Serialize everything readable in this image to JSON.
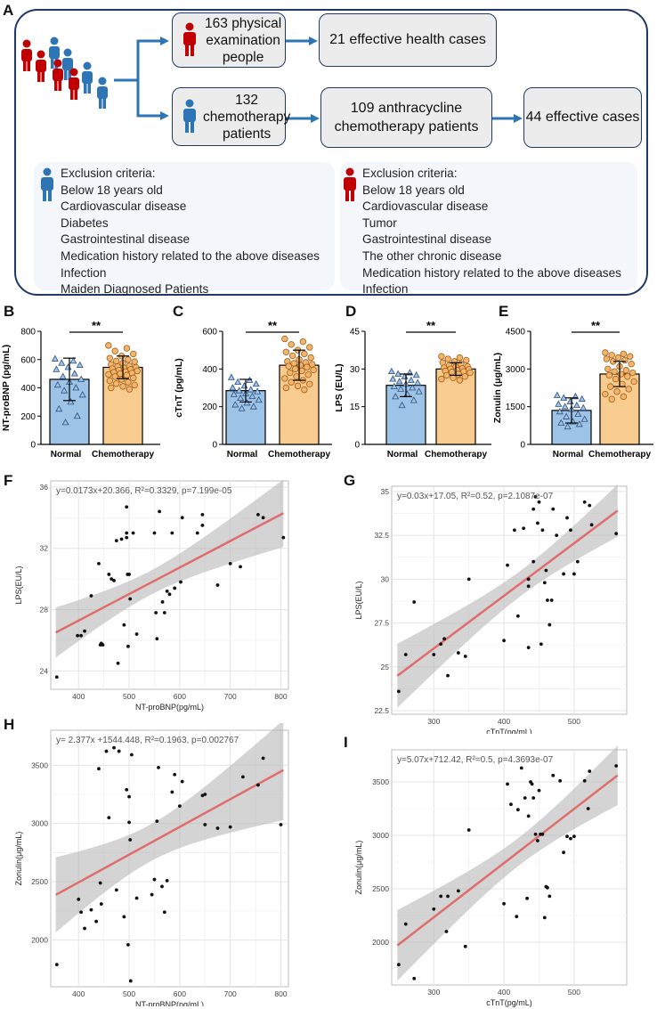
{
  "panel_letters": {
    "A": "A",
    "B": "B",
    "C": "C",
    "D": "D",
    "E": "E",
    "F": "F",
    "G": "G",
    "H": "H",
    "I": "I"
  },
  "flowchart": {
    "box1": {
      "count": "163",
      "label_rest": "physical",
      "line2": "examination",
      "line3": "people"
    },
    "box2": "21 effective health cases",
    "box3": {
      "count": "132",
      "line2": "chemotherapy",
      "line3": "patients"
    },
    "box4": {
      "line1": "109 anthracycline",
      "line2": "chemotherapy patients"
    },
    "box5": "44 effective cases",
    "colors": {
      "frame": "#1f3864",
      "arrow": "#2e75b6",
      "red_person": "#c00000",
      "blue_person": "#2e75b6"
    }
  },
  "exclusion_left": {
    "title": "Exclusion criteria:",
    "items": [
      "Below 18 years old",
      "Cardiovascular disease",
      "Diabetes",
      "Gastrointestinal disease",
      "Medication history related to the above diseases",
      "Infection",
      "Maiden Diagnosed Patients"
    ]
  },
  "exclusion_right": {
    "title": "Exclusion criteria:",
    "items": [
      "Below 18 years old",
      "Cardiovascular disease",
      "Tumor",
      "Gastrointestinal disease",
      "The other chronic disease",
      "Medication history related to the above diseases",
      "Infection"
    ]
  },
  "chart_data": [
    {
      "id": "B",
      "type": "bar",
      "ylabel": "NT-proBNP (pg/mL)",
      "categories": [
        "Normal",
        "Chemotherapy"
      ],
      "values": [
        460,
        545
      ],
      "sd": [
        150,
        80
      ],
      "ylim": [
        0,
        800
      ],
      "yticks": [
        "0",
        "200",
        "400",
        "600",
        "800"
      ],
      "significance": "**",
      "normal_points": [
        605,
        590,
        575,
        560,
        545,
        530,
        500,
        480,
        460,
        440,
        420,
        400,
        380,
        350,
        300,
        250,
        200,
        155
      ],
      "chemo_points": [
        700,
        680,
        660,
        640,
        625,
        610,
        600,
        590,
        585,
        575,
        565,
        555,
        550,
        545,
        540,
        535,
        530,
        525,
        520,
        515,
        510,
        505,
        500,
        495,
        490,
        480,
        470,
        460,
        450,
        440,
        430,
        420,
        410,
        400,
        390
      ]
    },
    {
      "id": "C",
      "type": "bar",
      "ylabel": "cTnT (pg/mL)",
      "categories": [
        "Normal",
        "Chemotherapy"
      ],
      "values": [
        285,
        420
      ],
      "sd": [
        60,
        80
      ],
      "ylim": [
        0,
        600
      ],
      "yticks": [
        "0",
        "200",
        "400",
        "600"
      ],
      "significance": "**",
      "normal_points": [
        355,
        340,
        330,
        320,
        310,
        300,
        290,
        285,
        280,
        270,
        265,
        255,
        245,
        235,
        220,
        210,
        200,
        190
      ],
      "chemo_points": [
        560,
        545,
        530,
        515,
        500,
        490,
        480,
        470,
        460,
        450,
        440,
        435,
        430,
        425,
        420,
        415,
        410,
        400,
        395,
        390,
        380,
        370,
        360,
        350,
        340,
        330,
        320,
        310,
        300,
        290
      ]
    },
    {
      "id": "D",
      "type": "bar",
      "ylabel": "LPS (EU/L)",
      "categories": [
        "Normal",
        "Chemotherapy"
      ],
      "values": [
        23.5,
        30
      ],
      "sd": [
        4.5,
        2.5
      ],
      "ylim": [
        0,
        45
      ],
      "yticks": [
        "0",
        "15",
        "30",
        "45"
      ],
      "significance": "**",
      "normal_points": [
        29,
        28.5,
        28,
        27.5,
        27,
        26,
        25.5,
        25,
        24.5,
        24,
        23,
        22.5,
        22,
        21,
        20,
        19,
        17.5,
        15.5
      ],
      "chemo_points": [
        35,
        34.5,
        34,
        33.5,
        33,
        32.5,
        32,
        31.5,
        31,
        30.8,
        30.5,
        30.2,
        30,
        29.8,
        29.5,
        29.2,
        29,
        28.8,
        28.5,
        28,
        27.5,
        27,
        26.5,
        26,
        25.5
      ]
    },
    {
      "id": "E",
      "type": "bar",
      "ylabel": "Zonulin (μg/mL)",
      "categories": [
        "Normal",
        "Chemotherapy"
      ],
      "values": [
        1350,
        2800
      ],
      "sd": [
        500,
        500
      ],
      "ylim": [
        0,
        4500
      ],
      "yticks": [
        "0",
        "1500",
        "3000",
        "4500"
      ],
      "significance": "**",
      "normal_points": [
        1950,
        1900,
        1850,
        1800,
        1700,
        1600,
        1550,
        1500,
        1450,
        1400,
        1300,
        1200,
        1100,
        1000,
        900,
        850,
        800,
        700
      ],
      "chemo_points": [
        3650,
        3600,
        3550,
        3500,
        3450,
        3400,
        3350,
        3300,
        3200,
        3100,
        3000,
        2950,
        2900,
        2850,
        2800,
        2750,
        2700,
        2600,
        2500,
        2400,
        2300,
        2200,
        2100,
        2000,
        1900,
        1800
      ]
    },
    {
      "id": "F",
      "type": "scatter",
      "equation": "y=0.0173x+20.366, R²=0.3329, p=7.199e-05",
      "xlabel": "NT-proBNP(pg/mL)",
      "ylabel": "LPS(EU/L)",
      "xlim": [
        345,
        815
      ],
      "ylim": [
        22.8,
        36.4
      ],
      "xticks": [
        400,
        500,
        600,
        700,
        800
      ],
      "yticks": [
        24,
        28,
        32,
        36
      ],
      "fit": {
        "slope": 0.0173,
        "intercept": 20.366,
        "x0": 355,
        "x1": 805
      },
      "points": [
        [
          357,
          23.6
        ],
        [
          398,
          26.3
        ],
        [
          405,
          26.3
        ],
        [
          412,
          26.6
        ],
        [
          425,
          28.9
        ],
        [
          440,
          31.0
        ],
        [
          443,
          25.7
        ],
        [
          445,
          25.8
        ],
        [
          448,
          25.7
        ],
        [
          460,
          30.3
        ],
        [
          465,
          30.0
        ],
        [
          470,
          29.9
        ],
        [
          475,
          32.5
        ],
        [
          478,
          24.5
        ],
        [
          485,
          32.6
        ],
        [
          490,
          27.0
        ],
        [
          495,
          34.7
        ],
        [
          495,
          33.0
        ],
        [
          495,
          32.7
        ],
        [
          497,
          30.3
        ],
        [
          498,
          25.6
        ],
        [
          500,
          30.3
        ],
        [
          502,
          28.7
        ],
        [
          508,
          33.0
        ],
        [
          515,
          26.4
        ],
        [
          550,
          33.0
        ],
        [
          553,
          27.8
        ],
        [
          555,
          26.1
        ],
        [
          560,
          34.4
        ],
        [
          566,
          28.5
        ],
        [
          570,
          27.8
        ],
        [
          575,
          29.2
        ],
        [
          580,
          29.0
        ],
        [
          585,
          33.0
        ],
        [
          590,
          29.4
        ],
        [
          602,
          29.8
        ],
        [
          605,
          34.0
        ],
        [
          635,
          33.0
        ],
        [
          645,
          34.2
        ],
        [
          645,
          33.5
        ],
        [
          675,
          29.6
        ],
        [
          700,
          31.0
        ],
        [
          720,
          30.8
        ],
        [
          755,
          34.2
        ],
        [
          765,
          34.0
        ],
        [
          805,
          32.7
        ]
      ]
    },
    {
      "id": "G",
      "type": "scatter",
      "equation": "y=0.03x+17.05, R²=0.52, p=2.1087e-07",
      "xlabel": "cTnT(pg/mL)",
      "ylabel": "LPS(EU/L)",
      "xlim": [
        240,
        575
      ],
      "ylim": [
        22.3,
        35.3
      ],
      "xticks": [
        300,
        400,
        500
      ],
      "yticks": [
        22.5,
        25.0,
        27.5,
        30.0,
        32.5,
        35.0
      ],
      "fit": {
        "slope": 0.03,
        "intercept": 17.05,
        "x0": 248,
        "x1": 562
      },
      "points": [
        [
          250,
          23.6
        ],
        [
          260,
          25.7
        ],
        [
          272,
          28.7
        ],
        [
          300,
          25.7
        ],
        [
          310,
          26.3
        ],
        [
          315,
          26.6
        ],
        [
          320,
          24.5
        ],
        [
          335,
          25.8
        ],
        [
          345,
          25.6
        ],
        [
          350,
          30.0
        ],
        [
          400,
          26.5
        ],
        [
          405,
          30.8
        ],
        [
          415,
          32.8
        ],
        [
          420,
          27.9
        ],
        [
          428,
          32.9
        ],
        [
          435,
          26.1
        ],
        [
          435,
          29.6
        ],
        [
          435,
          30.0
        ],
        [
          442,
          31.0
        ],
        [
          442,
          34.0
        ],
        [
          445,
          34.7
        ],
        [
          448,
          33.2
        ],
        [
          450,
          34.4
        ],
        [
          453,
          26.3
        ],
        [
          455,
          32.8
        ],
        [
          458,
          29.8
        ],
        [
          460,
          30.5
        ],
        [
          462,
          28.8
        ],
        [
          465,
          27.4
        ],
        [
          468,
          28.8
        ],
        [
          470,
          34.0
        ],
        [
          475,
          32.5
        ],
        [
          485,
          30.3
        ],
        [
          490,
          33.5
        ],
        [
          495,
          32.8
        ],
        [
          500,
          30.3
        ],
        [
          505,
          31.0
        ],
        [
          515,
          34.4
        ],
        [
          522,
          34.2
        ],
        [
          525,
          33.1
        ],
        [
          560,
          32.6
        ]
      ]
    },
    {
      "id": "H",
      "type": "scatter",
      "equation": "y= 2.377x +1544.448, R²=0.1963, p=0.002767",
      "xlabel": "NT-proBNP(pg/mL)",
      "ylabel": "Zonulin(μg/mL)",
      "xlim": [
        345,
        815
      ],
      "ylim": [
        1600,
        3800
      ],
      "xticks": [
        400,
        500,
        600,
        700,
        800
      ],
      "yticks": [
        2000,
        2500,
        3000,
        3500
      ],
      "fit": {
        "slope": 2.377,
        "intercept": 1544.448,
        "x0": 355,
        "x1": 805
      },
      "points": [
        [
          357,
          1790
        ],
        [
          400,
          2350
        ],
        [
          405,
          2240
        ],
        [
          412,
          2100
        ],
        [
          425,
          2260
        ],
        [
          435,
          2160
        ],
        [
          440,
          3470
        ],
        [
          443,
          2490
        ],
        [
          445,
          2310
        ],
        [
          455,
          3620
        ],
        [
          460,
          3050
        ],
        [
          470,
          3650
        ],
        [
          475,
          2430
        ],
        [
          480,
          3620
        ],
        [
          490,
          2200
        ],
        [
          495,
          3290
        ],
        [
          498,
          1960
        ],
        [
          500,
          3230
        ],
        [
          500,
          3010
        ],
        [
          502,
          2860
        ],
        [
          503,
          1650
        ],
        [
          505,
          3590
        ],
        [
          515,
          2360
        ],
        [
          545,
          2390
        ],
        [
          550,
          2520
        ],
        [
          555,
          3020
        ],
        [
          558,
          3480
        ],
        [
          565,
          2460
        ],
        [
          570,
          2240
        ],
        [
          575,
          2510
        ],
        [
          585,
          3270
        ],
        [
          590,
          3420
        ],
        [
          600,
          3150
        ],
        [
          605,
          3360
        ],
        [
          645,
          3240
        ],
        [
          650,
          3250
        ],
        [
          650,
          2990
        ],
        [
          675,
          2960
        ],
        [
          700,
          2970
        ],
        [
          725,
          3400
        ],
        [
          755,
          3330
        ],
        [
          765,
          3560
        ],
        [
          800,
          2990
        ]
      ]
    },
    {
      "id": "I",
      "type": "scatter",
      "equation": "y=5.07x+712.42, R²=0.5, p=4.3693e-07",
      "xlabel": "cTnT(pg/mL)",
      "ylabel": "Zonulin(μg/mL)",
      "xlim": [
        240,
        575
      ],
      "ylim": [
        1600,
        3800
      ],
      "xticks": [
        300,
        400,
        500
      ],
      "yticks": [
        2000,
        2500,
        3000,
        3500
      ],
      "fit": {
        "slope": 5.07,
        "intercept": 712.42,
        "x0": 248,
        "x1": 562
      },
      "points": [
        [
          250,
          1790
        ],
        [
          260,
          2170
        ],
        [
          272,
          1660
        ],
        [
          300,
          2310
        ],
        [
          310,
          2430
        ],
        [
          318,
          2100
        ],
        [
          320,
          2430
        ],
        [
          335,
          2480
        ],
        [
          345,
          1960
        ],
        [
          350,
          3050
        ],
        [
          400,
          2360
        ],
        [
          405,
          3480
        ],
        [
          410,
          3290
        ],
        [
          418,
          2240
        ],
        [
          420,
          3240
        ],
        [
          425,
          3630
        ],
        [
          430,
          3350
        ],
        [
          433,
          2410
        ],
        [
          435,
          3180
        ],
        [
          438,
          3500
        ],
        [
          440,
          3480
        ],
        [
          442,
          3350
        ],
        [
          445,
          3010
        ],
        [
          448,
          2950
        ],
        [
          450,
          3420
        ],
        [
          452,
          3010
        ],
        [
          455,
          3010
        ],
        [
          458,
          2230
        ],
        [
          460,
          2520
        ],
        [
          462,
          2510
        ],
        [
          465,
          2430
        ],
        [
          470,
          3560
        ],
        [
          480,
          3510
        ],
        [
          485,
          2840
        ],
        [
          490,
          2990
        ],
        [
          495,
          2970
        ],
        [
          500,
          2990
        ],
        [
          515,
          3510
        ],
        [
          520,
          3250
        ],
        [
          522,
          3600
        ],
        [
          560,
          3650
        ]
      ]
    }
  ]
}
